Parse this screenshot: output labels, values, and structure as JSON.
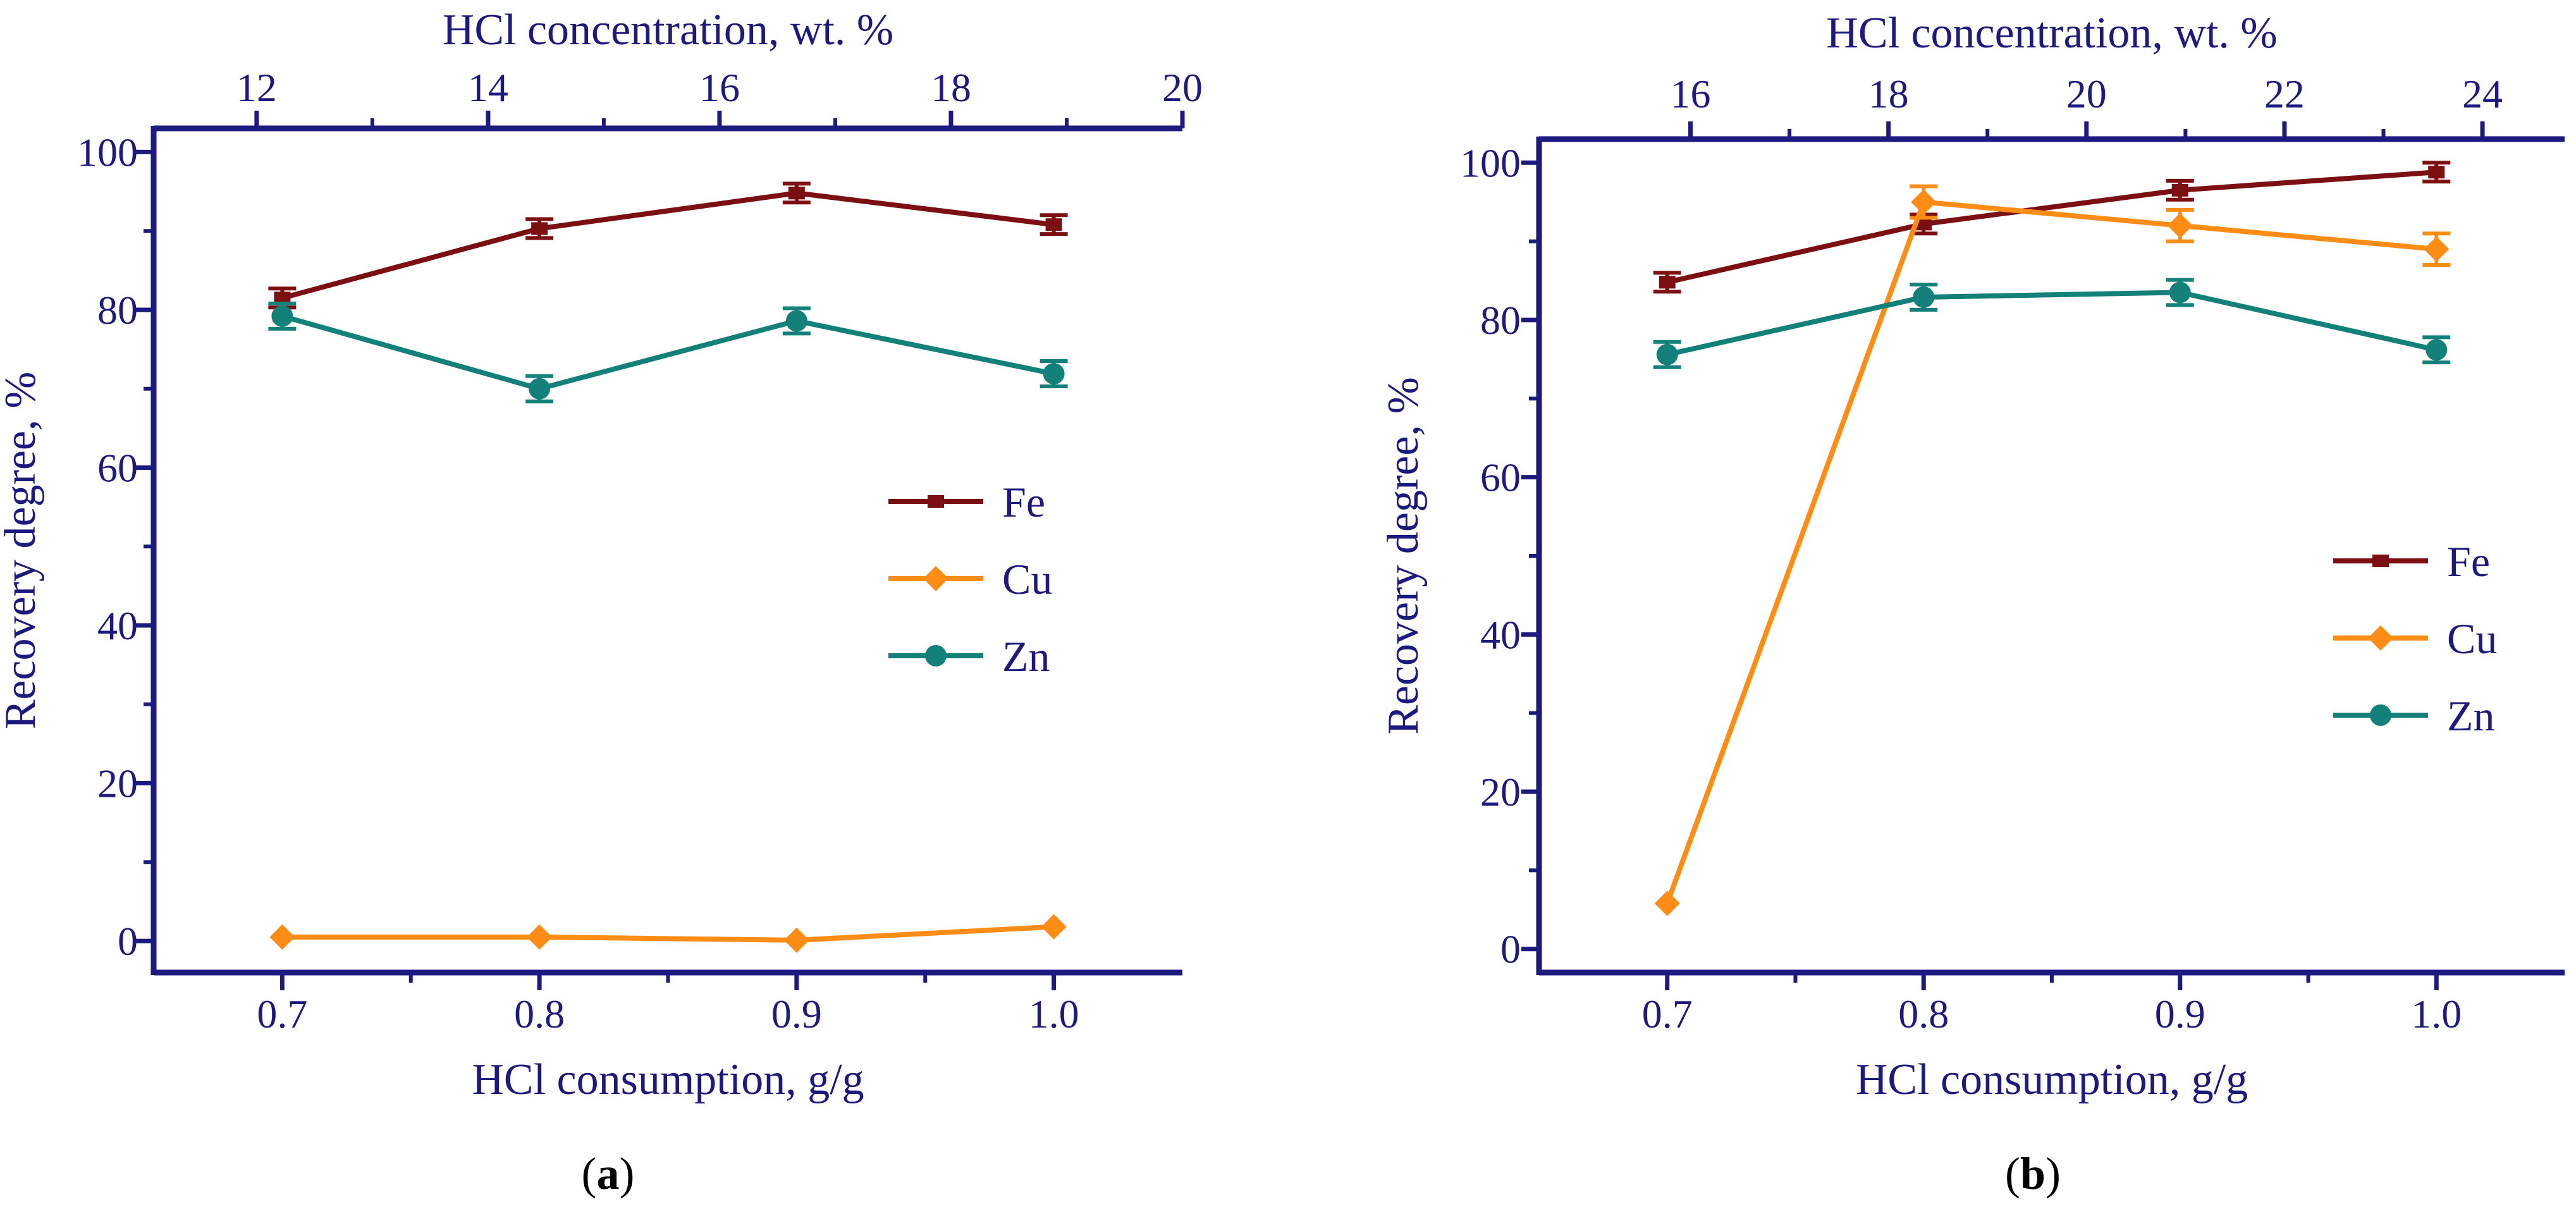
{
  "figure": {
    "axis_color": "#1c1a7e",
    "background": "#ffffff"
  },
  "chart_data": [
    {
      "panel_label": "(a)",
      "panel_letter": "a",
      "type": "line",
      "xlabel": "HCl consumption, g/g",
      "ylabel": "Recovery degree, %",
      "top_xlabel": "HCl concentration, wt. %",
      "xlim": [
        0.65,
        1.05
      ],
      "ylim": [
        -4,
        103
      ],
      "x_ticks": [
        0.7,
        0.8,
        0.9,
        1.0
      ],
      "x_tick_labels": [
        "0.7",
        "0.8",
        "0.9",
        "1.0"
      ],
      "y_ticks": [
        0,
        20,
        40,
        60,
        80,
        100
      ],
      "y_tick_labels": [
        "0",
        "20",
        "40",
        "60",
        "80",
        "100"
      ],
      "top_xlim": [
        11.11,
        20.0
      ],
      "top_ticks": [
        12,
        14,
        16,
        18,
        20
      ],
      "top_tick_labels": [
        "12",
        "14",
        "16",
        "18",
        "20"
      ],
      "legend_position": "right-middle",
      "series": [
        {
          "name": "Fe",
          "color": "#7b0f12",
          "marker": "square",
          "x": [
            0.7,
            0.8,
            0.9,
            1.0
          ],
          "y": [
            81.5,
            90.3,
            94.8,
            90.8
          ],
          "err": [
            1.2,
            1.2,
            1.2,
            1.2
          ]
        },
        {
          "name": "Cu",
          "color": "#ff8c14",
          "marker": "diamond",
          "x": [
            0.7,
            0.8,
            0.9,
            1.0
          ],
          "y": [
            0.5,
            0.5,
            0.1,
            1.8
          ],
          "err": [
            0,
            0,
            0,
            0
          ]
        },
        {
          "name": "Zn",
          "color": "#14807a",
          "marker": "circle",
          "x": [
            0.7,
            0.8,
            0.9,
            1.0
          ],
          "y": [
            79.2,
            70.0,
            78.6,
            71.9
          ],
          "err": [
            1.6,
            1.6,
            1.6,
            1.6
          ]
        }
      ]
    },
    {
      "panel_label": "(b)",
      "panel_letter": "b",
      "type": "line",
      "xlabel": "HCl consumption, g/g",
      "ylabel": "Recovery degree, %",
      "top_xlabel": "HCl concentration, wt. %",
      "xlim": [
        0.65,
        1.05
      ],
      "ylim": [
        -3,
        103
      ],
      "x_ticks": [
        0.7,
        0.8,
        0.9,
        1.0
      ],
      "x_tick_labels": [
        "0.7",
        "0.8",
        "0.9",
        "1.0"
      ],
      "y_ticks": [
        0,
        20,
        40,
        60,
        80,
        100
      ],
      "y_tick_labels": [
        "0",
        "20",
        "40",
        "60",
        "80",
        "100"
      ],
      "top_xlim": [
        14.47,
        24.83
      ],
      "top_ticks": [
        16,
        18,
        20,
        22,
        24
      ],
      "top_tick_labels": [
        "16",
        "18",
        "20",
        "22",
        "24"
      ],
      "legend_position": "right-middle",
      "series": [
        {
          "name": "Fe",
          "color": "#7b0f12",
          "marker": "square",
          "x": [
            0.7,
            0.8,
            0.9,
            1.0
          ],
          "y": [
            84.8,
            92.2,
            96.5,
            98.8
          ],
          "err": [
            1.2,
            1.2,
            1.2,
            1.2
          ]
        },
        {
          "name": "Cu",
          "color": "#ff8c14",
          "marker": "diamond",
          "x": [
            0.7,
            0.8,
            0.9,
            1.0
          ],
          "y": [
            5.8,
            95.0,
            92.0,
            89.0
          ],
          "err": [
            0,
            2.0,
            2.0,
            2.0
          ]
        },
        {
          "name": "Zn",
          "color": "#14807a",
          "marker": "circle",
          "x": [
            0.7,
            0.8,
            0.9,
            1.0
          ],
          "y": [
            75.6,
            82.9,
            83.5,
            76.2
          ],
          "err": [
            1.6,
            1.6,
            1.6,
            1.6
          ]
        }
      ]
    }
  ]
}
